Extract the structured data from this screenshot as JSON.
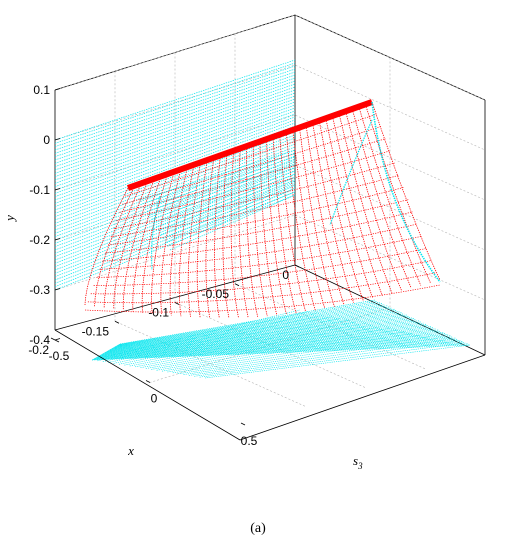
{
  "chart_data": {
    "type": "3d-surface",
    "caption": "(a)",
    "axes": {
      "x": {
        "label": "x",
        "range": [
          -0.2,
          0
        ],
        "ticks": [
          "0",
          "-0.05",
          "-0.1",
          "-0.15",
          "-0.2"
        ]
      },
      "s3": {
        "label_base": "s",
        "label_sub": "3",
        "range": [
          -0.5,
          0.5
        ],
        "ticks": [
          "-0.5",
          "0",
          "0.5"
        ]
      },
      "y": {
        "label": "y",
        "range": [
          -0.4,
          0.1
        ],
        "ticks": [
          "0.1",
          "0",
          "-0.1",
          "-0.2",
          "-0.3",
          "-0.4"
        ]
      }
    },
    "grid": true,
    "series": [
      {
        "role": "surface",
        "color": "#ff0000"
      },
      {
        "role": "projections",
        "color": "#00e5ee"
      }
    ]
  }
}
